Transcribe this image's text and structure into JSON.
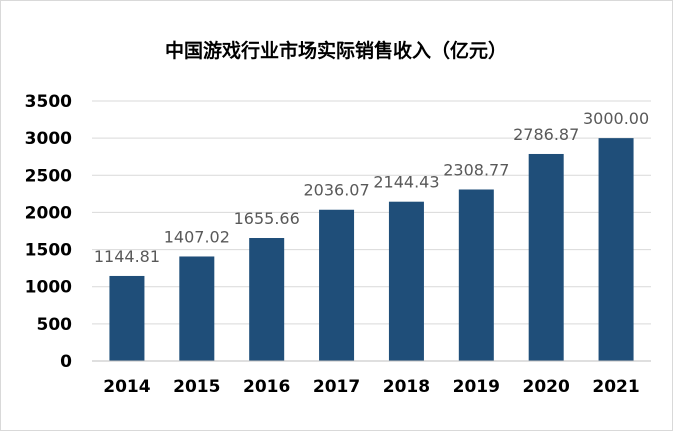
{
  "chart_data": {
    "type": "bar",
    "title": "中国游戏行业市场实际销售收入（亿元）",
    "categories": [
      "2014",
      "2015",
      "2016",
      "2017",
      "2018",
      "2019",
      "2020",
      "2021"
    ],
    "values": [
      1144.81,
      1407.02,
      1655.66,
      2036.07,
      2144.43,
      2308.77,
      2786.87,
      3000.0
    ],
    "data_labels": [
      "1144.81",
      "1407.02",
      "1655.66",
      "2036.07",
      "2144.43",
      "2308.77",
      "2786.87",
      "3000.00"
    ],
    "yticks": [
      "0",
      "500",
      "1000",
      "1500",
      "2000",
      "2500",
      "3000",
      "3500"
    ],
    "ylim": [
      0,
      3500
    ],
    "xlabel": "",
    "ylabel": "",
    "grid": true,
    "legend": "none",
    "bar_color": "#1f4e79"
  }
}
